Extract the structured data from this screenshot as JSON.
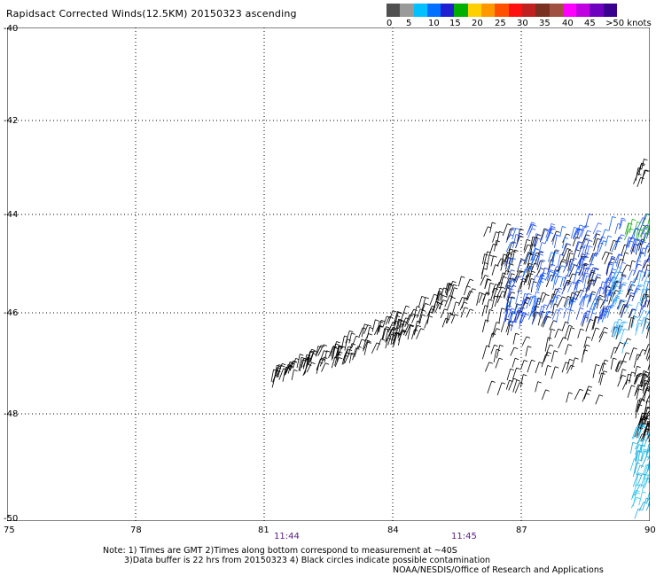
{
  "title": "Rapidsact Corrected Winds(12.5KM) 20150323 ascending",
  "legend": {
    "colors": [
      "#505050",
      "#9a9a9a",
      "#00c0ff",
      "#0070ff",
      "#2020d0",
      "#00b000",
      "#ffd000",
      "#ff9800",
      "#ff5000",
      "#ff1010",
      "#c02020",
      "#7a3020",
      "#a05040",
      "#ff00ff",
      "#c000e0",
      "#7000c0",
      "#3a0090"
    ],
    "labels": [
      "0",
      "5",
      "10",
      "15",
      "20",
      "25",
      "30",
      "35",
      "40",
      "45",
      ">50 knots"
    ]
  },
  "map": {
    "lat_labels": [
      "-40",
      "-42",
      "-44",
      "-46",
      "-48",
      "-50"
    ],
    "lon_labels": [
      "75",
      "78",
      "81",
      "84",
      "87",
      "90"
    ],
    "time_labels": [
      "11:44",
      "11:45"
    ]
  },
  "notes": {
    "line1": "Note: 1) Times are GMT 2)Times along bottom correspond to measurement at ~40S",
    "line2": "3)Data buffer is 22 hrs from 20150323 4) Black circles indicate possible contamination",
    "line3": "NOAA/NESDIS/Office of Research and Applications"
  }
}
